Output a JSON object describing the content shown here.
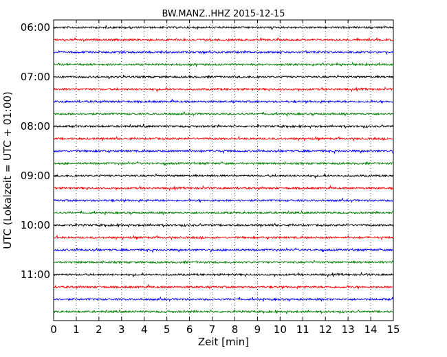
{
  "chart_data": {
    "type": "line",
    "title": "BW.MANZ..HHZ 2015-12-15",
    "xlabel": "Zeit  [min]",
    "ylabel": "UTC (Lokalzeit = UTC + 01:00)",
    "xlim": [
      0,
      15
    ],
    "x_ticks": [
      "0",
      "1",
      "2",
      "3",
      "4",
      "5",
      "6",
      "7",
      "8",
      "9",
      "10",
      "11",
      "12",
      "13",
      "14",
      "15"
    ],
    "y_ticks": [
      "06:00",
      "07:00",
      "08:00",
      "09:00",
      "10:00",
      "11:00"
    ],
    "grid": {
      "vertical_dotted": true,
      "horizontal": false
    },
    "series_colors": [
      "#000000",
      "#ff0000",
      "#0000ff",
      "#008000"
    ],
    "traces": [
      {
        "start": "06:00",
        "color": "#000000"
      },
      {
        "start": "06:15",
        "color": "#ff0000"
      },
      {
        "start": "06:30",
        "color": "#0000ff"
      },
      {
        "start": "06:45",
        "color": "#008000"
      },
      {
        "start": "07:00",
        "color": "#000000"
      },
      {
        "start": "07:15",
        "color": "#ff0000"
      },
      {
        "start": "07:30",
        "color": "#0000ff"
      },
      {
        "start": "07:45",
        "color": "#008000"
      },
      {
        "start": "08:00",
        "color": "#000000"
      },
      {
        "start": "08:15",
        "color": "#ff0000"
      },
      {
        "start": "08:30",
        "color": "#0000ff"
      },
      {
        "start": "08:45",
        "color": "#008000"
      },
      {
        "start": "09:00",
        "color": "#000000"
      },
      {
        "start": "09:15",
        "color": "#ff0000"
      },
      {
        "start": "09:30",
        "color": "#0000ff"
      },
      {
        "start": "09:45",
        "color": "#008000"
      },
      {
        "start": "10:00",
        "color": "#000000"
      },
      {
        "start": "10:15",
        "color": "#ff0000"
      },
      {
        "start": "10:30",
        "color": "#0000ff"
      },
      {
        "start": "10:45",
        "color": "#008000"
      },
      {
        "start": "11:00",
        "color": "#000000"
      },
      {
        "start": "11:15",
        "color": "#ff0000"
      },
      {
        "start": "11:30",
        "color": "#0000ff"
      },
      {
        "start": "11:45",
        "color": "#008000"
      }
    ]
  }
}
